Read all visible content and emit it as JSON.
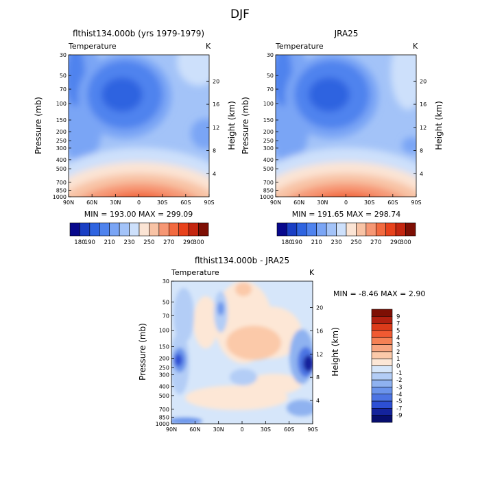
{
  "figure_title": "DJF",
  "chart_data": [
    {
      "type": "contour",
      "title": "flthist134.000b (yrs 1979-1979)",
      "field_label": "Temperature",
      "units": "K",
      "ylabel": "Pressure (mb)",
      "ylabel_right": "Height (km)",
      "x_ticks": [
        "90N",
        "60N",
        "30N",
        "0",
        "30S",
        "60S",
        "90S"
      ],
      "y_ticks": [
        "30",
        "50",
        "70",
        "100",
        "150",
        "200",
        "250",
        "300",
        "400",
        "500",
        "700",
        "850",
        "1000"
      ],
      "height_ticks": [
        "4",
        "8",
        "12",
        "16",
        "20"
      ],
      "stats": "MIN = 193.00   MAX = 299.09",
      "min": 193.0,
      "max": 299.09,
      "colorbar_levels": [
        "180",
        "190",
        "200",
        "210",
        "220",
        "230",
        "240",
        "250",
        "260",
        "270",
        "280",
        "290",
        "300"
      ],
      "colorbar_labels": [
        "180",
        "190",
        "210",
        "230",
        "250",
        "270",
        "290",
        "300"
      ]
    },
    {
      "type": "contour",
      "title": "JRA25",
      "field_label": "Temperature",
      "units": "K",
      "ylabel": "Pressure (mb)",
      "ylabel_right": "Height (km)",
      "x_ticks": [
        "90N",
        "60N",
        "30N",
        "0",
        "30S",
        "60S",
        "90S"
      ],
      "y_ticks": [
        "30",
        "50",
        "70",
        "100",
        "150",
        "200",
        "250",
        "300",
        "400",
        "500",
        "700",
        "850",
        "1000"
      ],
      "height_ticks": [
        "4",
        "8",
        "12",
        "16",
        "20"
      ],
      "stats": "MIN = 191.65   MAX = 298.74",
      "min": 191.65,
      "max": 298.74,
      "colorbar_levels": [
        "180",
        "190",
        "200",
        "210",
        "220",
        "230",
        "240",
        "250",
        "260",
        "270",
        "280",
        "290",
        "300"
      ],
      "colorbar_labels": [
        "180",
        "190",
        "210",
        "230",
        "250",
        "270",
        "290",
        "300"
      ]
    },
    {
      "type": "contour",
      "title": "flthist134.000b - JRA25",
      "field_label": "Temperature",
      "units": "K",
      "ylabel": "Pressure (mb)",
      "ylabel_right": "Height (km)",
      "x_ticks": [
        "90N",
        "60N",
        "30N",
        "0",
        "30S",
        "60S",
        "90S"
      ],
      "y_ticks": [
        "30",
        "50",
        "70",
        "100",
        "150",
        "200",
        "250",
        "300",
        "400",
        "500",
        "700",
        "850",
        "1000"
      ],
      "height_ticks": [
        "4",
        "8",
        "12",
        "16",
        "20"
      ],
      "stats": "MIN =   -8.46   MAX =    2.90",
      "min": -8.46,
      "max": 2.9,
      "colorbar_labels": [
        "9",
        "7",
        "5",
        "4",
        "3",
        "2",
        "1",
        "0",
        "-1",
        "-2",
        "-3",
        "-4",
        "-5",
        "-7",
        "-9"
      ]
    }
  ],
  "colors": {
    "temp_scale": [
      "#08088c",
      "#1a3fc4",
      "#2f64e0",
      "#4f83ee",
      "#7aa5f5",
      "#a3c3f8",
      "#cde0fb",
      "#fbe4d4",
      "#f8c3a5",
      "#f69774",
      "#f26a40",
      "#e8421c",
      "#c42610",
      "#7e0f04"
    ],
    "diff_scale": [
      "#7e0f04",
      "#b22010",
      "#dc3b1a",
      "#f05a32",
      "#f58155",
      "#f8a580",
      "#fbc9a9",
      "#fde7d6",
      "#d6e6fa",
      "#b3cdf6",
      "#8fb2f0",
      "#6b94eb",
      "#4c74e3",
      "#2d4fd4",
      "#14239c",
      "#070e6e"
    ]
  }
}
